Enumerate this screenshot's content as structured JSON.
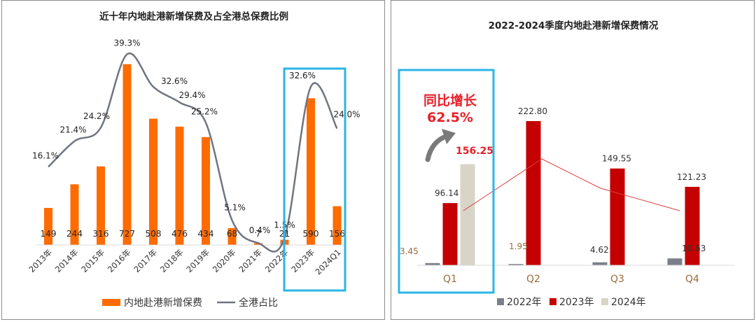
{
  "chart_data": [
    {
      "type": "bar+line",
      "title": "近十年内地赴港新增保费及占全港总保费比例",
      "categories": [
        "2013年",
        "2014年",
        "2015年",
        "2016年",
        "2017年",
        "2018年",
        "2019年",
        "2020年",
        "2021年",
        "2022年",
        "2023年",
        "2024Q1"
      ],
      "bar_series": {
        "name": "内地赴港新增保费",
        "color": "#ff6b00",
        "values": [
          149,
          244,
          316,
          727,
          508,
          476,
          434,
          68,
          7,
          21,
          590,
          156
        ]
      },
      "line_series": {
        "name": "全港占比",
        "color": "#707580",
        "values": [
          16.1,
          21.4,
          24.2,
          39.3,
          32.6,
          29.4,
          25.2,
          5.1,
          0.4,
          1.5,
          32.6,
          24.0
        ],
        "labels": [
          "16.1%",
          "21.4%",
          "24.2%",
          "39.3%",
          "32.6%",
          "29.4%",
          "25.2%",
          "5.1%",
          "0.4%",
          "1.5%",
          "32.6%",
          "24.0%"
        ]
      },
      "ylim": [
        0,
        760
      ],
      "highlight": {
        "categories": [
          "2023年",
          "2024Q1"
        ],
        "color": "#2bb5e6"
      }
    },
    {
      "type": "bar",
      "title": "2022-2024季度内地赴港新增保费情况",
      "categories": [
        "Q1",
        "Q2",
        "Q3",
        "Q4"
      ],
      "series": [
        {
          "name": "2022年",
          "color": "#7b7f8a",
          "values": [
            3.45,
            1.95,
            4.62,
            10.63
          ],
          "labels": [
            "3.45",
            "1.95",
            "4.62",
            "10.63"
          ]
        },
        {
          "name": "2023年",
          "color": "#c40000",
          "values": [
            96.14,
            222.8,
            149.55,
            121.23
          ],
          "labels": [
            "96.14",
            "222.80",
            "149.55",
            "121.23"
          ]
        },
        {
          "name": "2024年",
          "color": "#d9d4c8",
          "values": [
            156.25,
            null,
            null,
            null
          ],
          "labels": [
            "156.25",
            "",
            "",
            ""
          ]
        }
      ],
      "ylim": [
        0,
        240
      ],
      "annotation": {
        "line1": "同比增长",
        "line2": "62.5%",
        "color": "#e8202a"
      },
      "highlight": {
        "categories": [
          "Q1"
        ],
        "color": "#2bb5e6"
      }
    }
  ]
}
